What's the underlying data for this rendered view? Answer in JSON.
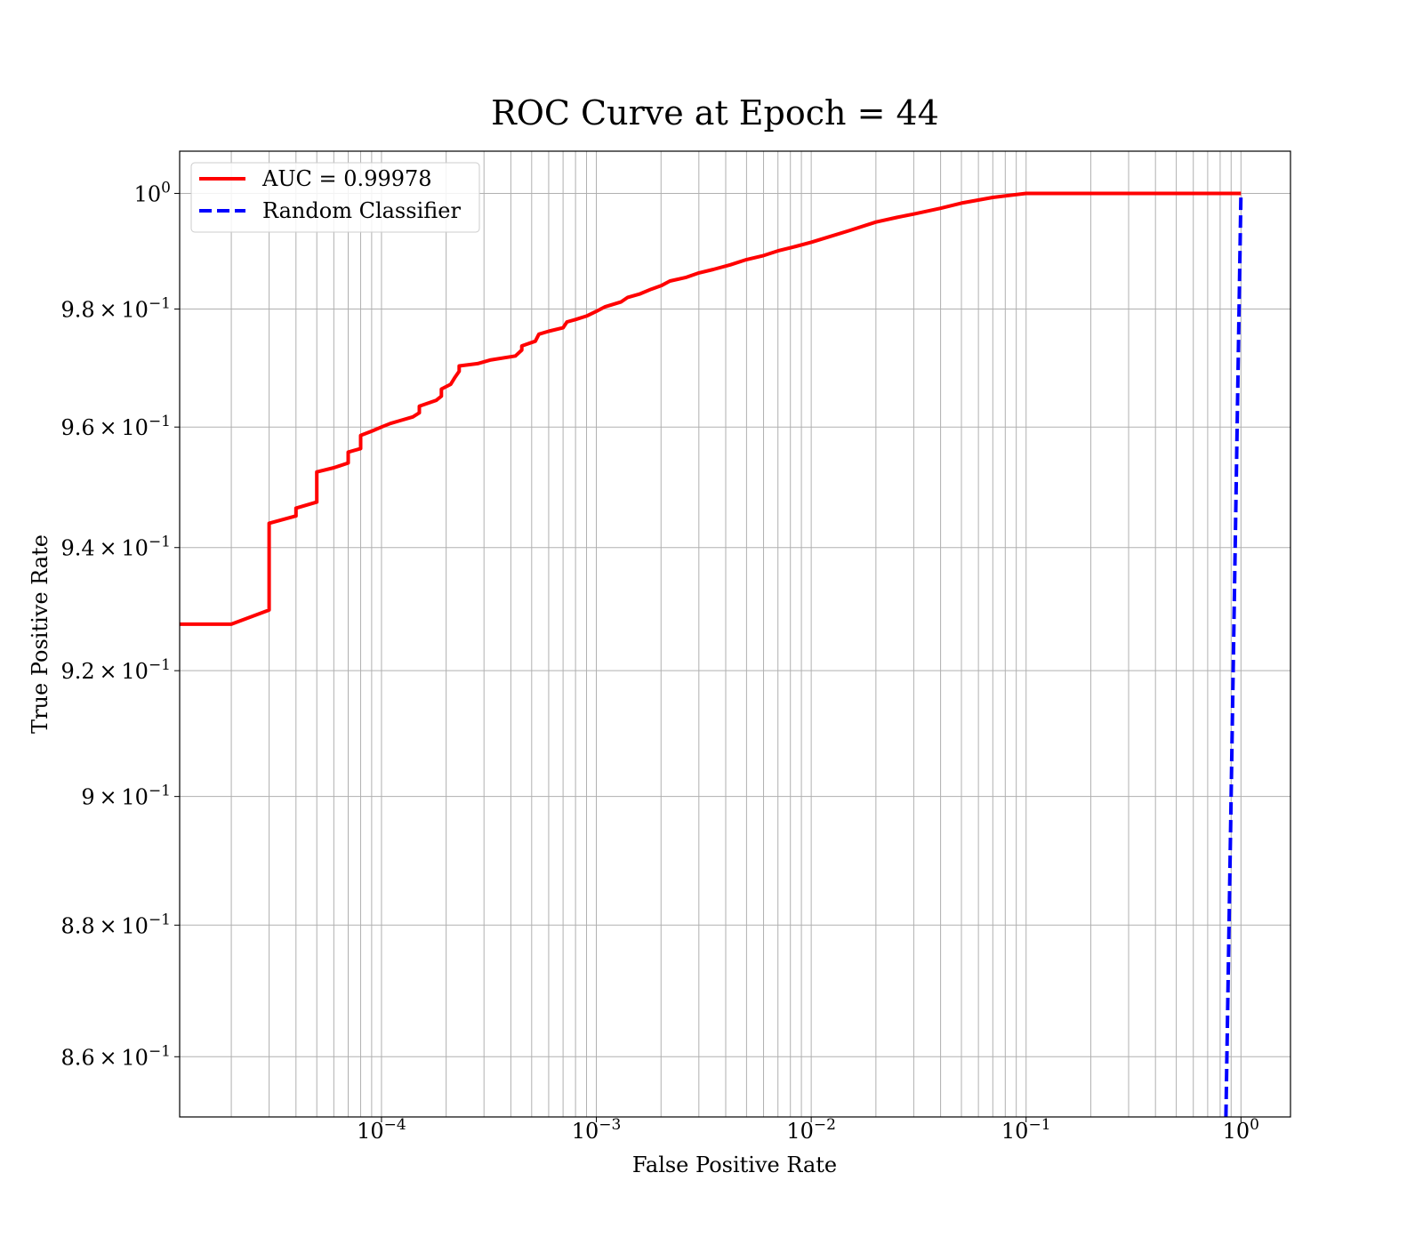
{
  "chart_data": {
    "type": "line",
    "title": "ROC Curve at Epoch = 44",
    "xlabel": "False Positive Rate",
    "ylabel": "True Positive Rate",
    "xscale": "log",
    "yscale": "log",
    "xlim": [
      1.15e-05,
      1.7
    ],
    "ylim": [
      0.851,
      1.0074
    ],
    "grid": true,
    "grid_minor": true,
    "legend_position": "top-left",
    "x_ticks": [
      {
        "value": 0.0001,
        "base": "10",
        "exp": "−4"
      },
      {
        "value": 0.001,
        "base": "10",
        "exp": "−3"
      },
      {
        "value": 0.01,
        "base": "10",
        "exp": "−2"
      },
      {
        "value": 0.1,
        "base": "10",
        "exp": "−1"
      },
      {
        "value": 1,
        "base": "10",
        "exp": "0"
      }
    ],
    "y_ticks": [
      {
        "value": 1.0,
        "mantissa": "",
        "exp": "0"
      },
      {
        "value": 0.98,
        "mantissa": "9.8",
        "exp": "−1"
      },
      {
        "value": 0.96,
        "mantissa": "9.6",
        "exp": "−1"
      },
      {
        "value": 0.94,
        "mantissa": "9.4",
        "exp": "−1"
      },
      {
        "value": 0.92,
        "mantissa": "9.2",
        "exp": "−1"
      },
      {
        "value": 0.9,
        "mantissa": "9",
        "exp": "−1"
      },
      {
        "value": 0.88,
        "mantissa": "8.8",
        "exp": "−1"
      },
      {
        "value": 0.86,
        "mantissa": "8.6",
        "exp": "−1"
      }
    ],
    "series": [
      {
        "name": "AUC = 0.99978",
        "color": "#ff0000",
        "style": "solid",
        "points": [
          [
            1.15e-05,
            0.9275
          ],
          [
            2e-05,
            0.9275
          ],
          [
            3e-05,
            0.9298
          ],
          [
            3e-05,
            0.944
          ],
          [
            4e-05,
            0.9452
          ],
          [
            4e-05,
            0.9465
          ],
          [
            5e-05,
            0.9475
          ],
          [
            5e-05,
            0.9525
          ],
          [
            6e-05,
            0.9532
          ],
          [
            7e-05,
            0.954
          ],
          [
            7e-05,
            0.9558
          ],
          [
            8e-05,
            0.9564
          ],
          [
            8e-05,
            0.9586
          ],
          [
            9e-05,
            0.9593
          ],
          [
            0.0001,
            0.96
          ],
          [
            0.00011,
            0.9606
          ],
          [
            0.00012,
            0.961
          ],
          [
            0.00014,
            0.9617
          ],
          [
            0.00015,
            0.9624
          ],
          [
            0.00015,
            0.9635
          ],
          [
            0.00018,
            0.9645
          ],
          [
            0.00019,
            0.9652
          ],
          [
            0.00019,
            0.9664
          ],
          [
            0.00021,
            0.9672
          ],
          [
            0.00022,
            0.9684
          ],
          [
            0.00023,
            0.9694
          ],
          [
            0.00023,
            0.9703
          ],
          [
            0.00028,
            0.9707
          ],
          [
            0.00032,
            0.9713
          ],
          [
            0.00042,
            0.972
          ],
          [
            0.00045,
            0.973
          ],
          [
            0.00045,
            0.9737
          ],
          [
            0.00052,
            0.9745
          ],
          [
            0.00054,
            0.9757
          ],
          [
            0.0006,
            0.9762
          ],
          [
            0.0007,
            0.9768
          ],
          [
            0.00073,
            0.9778
          ],
          [
            0.0008,
            0.9782
          ],
          [
            0.0009,
            0.9788
          ],
          [
            0.001,
            0.9796
          ],
          [
            0.0011,
            0.9804
          ],
          [
            0.0013,
            0.9812
          ],
          [
            0.0014,
            0.982
          ],
          [
            0.0016,
            0.9826
          ],
          [
            0.0018,
            0.9834
          ],
          [
            0.002,
            0.984
          ],
          [
            0.0022,
            0.9848
          ],
          [
            0.0026,
            0.9854
          ],
          [
            0.003,
            0.9862
          ],
          [
            0.0035,
            0.9868
          ],
          [
            0.0042,
            0.9876
          ],
          [
            0.005,
            0.9885
          ],
          [
            0.006,
            0.9892
          ],
          [
            0.007,
            0.99
          ],
          [
            0.0085,
            0.9908
          ],
          [
            0.01,
            0.9915
          ],
          [
            0.012,
            0.9924
          ],
          [
            0.015,
            0.9935
          ],
          [
            0.02,
            0.995
          ],
          [
            0.025,
            0.9958
          ],
          [
            0.03,
            0.9964
          ],
          [
            0.04,
            0.9974
          ],
          [
            0.05,
            0.9983
          ],
          [
            0.07,
            0.9993
          ],
          [
            0.1,
            1.0
          ],
          [
            1.0,
            1.0
          ]
        ]
      },
      {
        "name": "Random Classifier",
        "color": "#0000ff",
        "style": "dashed",
        "points": [
          [
            0.851,
            0.851
          ],
          [
            1.0,
            1.0
          ]
        ]
      }
    ]
  }
}
